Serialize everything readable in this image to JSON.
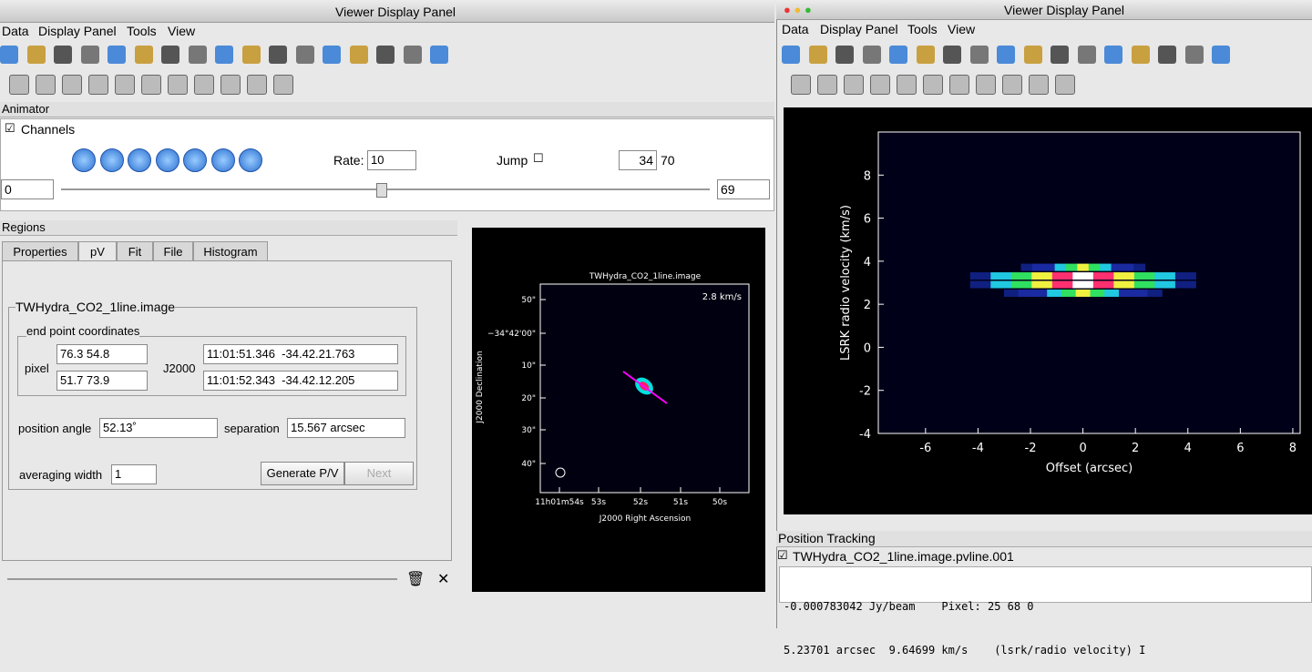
{
  "left_window": {
    "title": "Viewer Display Panel",
    "menu": [
      "Data",
      "Display Panel",
      "Tools",
      "View"
    ]
  },
  "animator": {
    "title": "Animator",
    "channels": "Channels",
    "rate_label": "Rate:",
    "rate": "10",
    "jump": "Jump",
    "frame": "34",
    "frame_count": "70",
    "start": "0",
    "end": "69"
  },
  "regions": {
    "title": "Regions",
    "tabs": [
      "Properties",
      "pV",
      "Fit",
      "File",
      "Histogram"
    ],
    "image_name": "TWHydra_CO2_1line.image",
    "group": "end point coordinates",
    "pixel_label": "pixel",
    "pixel": [
      "76.3 54.8",
      "51.7 73.9"
    ],
    "j2000_label": "J2000",
    "j2000": [
      "11:01:51.346  -34.42.21.763",
      "11:01:52.343  -34.42.12.205"
    ],
    "position_angle_label": "position angle",
    "position_angle": "52.13˚",
    "separation_label": "separation",
    "separation": "15.567 arcsec",
    "averaging_width_label": "averaging width",
    "averaging_width": "1",
    "buttons": [
      "Generate P/V",
      "Next"
    ]
  },
  "sky_image": {
    "title": "TWHydra_CO2_1line.image",
    "channel_velocity": "2.8 km/s",
    "yticks": [
      "50\"",
      "−34°42'00\"",
      "10\"",
      "20\"",
      "30\"",
      "40\""
    ],
    "xticks": [
      "11h01m54s",
      "53s",
      "52s",
      "51s",
      "50s"
    ],
    "xlabel": "J2000 Right Ascension",
    "ylabel": "J2000 Declination"
  },
  "right_window": {
    "title": "Viewer Display Panel",
    "menu": [
      "Data",
      "Display Panel",
      "Tools",
      "View"
    ]
  },
  "pv_plot": {
    "xlim": [
      -7.8,
      8.28
    ],
    "ylim": [
      -4,
      10
    ],
    "xticks": [
      -6,
      -4,
      -2,
      0,
      2,
      4,
      6,
      8
    ],
    "yticks": [
      -4,
      -2,
      0,
      2,
      4,
      6,
      8
    ],
    "xlabel": "Offset (arcsec)",
    "ylabel": "LSRK radio velocity  (km/s)"
  },
  "tracking": {
    "title": "Position Tracking",
    "image": "TWHydra_CO2_1line.image.pvline.001",
    "lines": [
      "-0.000783042 Jy/beam    Pixel: 25 68 0",
      "5.23701 arcsec  9.64699 km/s    (lsrk/radio velocity) I"
    ]
  }
}
